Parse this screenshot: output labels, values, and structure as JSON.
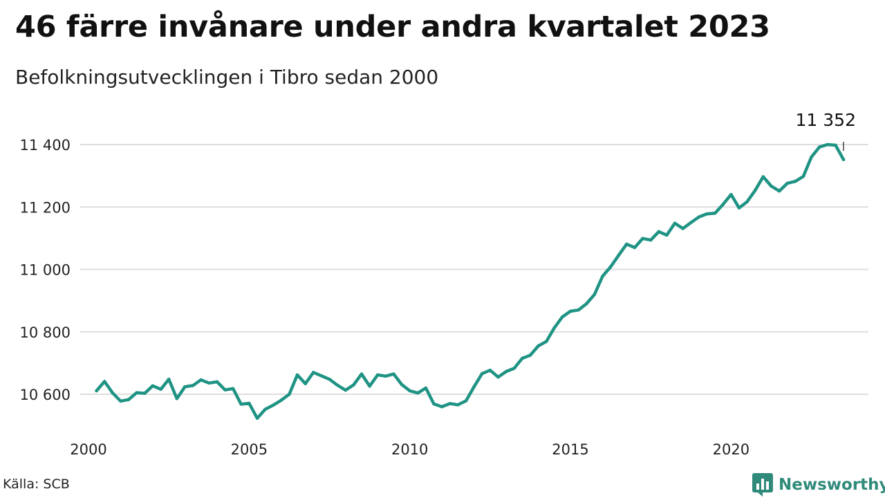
{
  "title": "46 färre invånare under andra kvartalet 2023",
  "subtitle": "Befolkningsutvecklingen i Tibro sedan 2000",
  "source": "Källa: SCB",
  "brand": {
    "name": "Newsworthy",
    "icon": "bar-chart-logo-icon",
    "color": "#2f8a7a"
  },
  "colors": {
    "line": "#1f9384",
    "grid": "#dddddd"
  },
  "chart_data": {
    "type": "line",
    "title": "46 färre invånare under andra kvartalet 2023",
    "subtitle": "Befolkningsutvecklingen i Tibro sedan 2000",
    "xlabel": "",
    "ylabel": "",
    "grid": true,
    "x_ticks": [
      2000,
      2005,
      2010,
      2015,
      2020
    ],
    "x_tick_labels": [
      "2000",
      "2005",
      "2010",
      "2015",
      "2020"
    ],
    "y_ticks": [
      10600,
      10800,
      11000,
      11200,
      11400
    ],
    "y_tick_labels": [
      "10 600",
      "10 800",
      "11 000",
      "11 200",
      "11 400"
    ],
    "xlim": [
      2000,
      2023.5
    ],
    "ylim": [
      10490,
      11420
    ],
    "end_label": "11 352",
    "series": [
      {
        "x": [
          2000.25,
          2000.5,
          2000.75,
          2001.0,
          2001.25,
          2001.5,
          2001.75,
          2002.0,
          2002.25,
          2002.5,
          2002.75,
          2003.0,
          2003.25,
          2003.5,
          2003.75,
          2004.0,
          2004.25,
          2004.5,
          2004.75,
          2005.0,
          2005.25,
          2005.5,
          2005.75,
          2006.0,
          2006.25,
          2006.5,
          2006.75,
          2007.0,
          2007.25,
          2007.5,
          2007.75,
          2008.0,
          2008.25,
          2008.5,
          2008.75,
          2009.0,
          2009.25,
          2009.5,
          2009.75,
          2010.0,
          2010.25,
          2010.5,
          2010.75,
          2011.0,
          2011.25,
          2011.5,
          2011.75,
          2012.0,
          2012.25,
          2012.5,
          2012.75,
          2013.0,
          2013.25,
          2013.5,
          2013.75,
          2014.0,
          2014.25,
          2014.5,
          2014.75,
          2015.0,
          2015.25,
          2015.5,
          2015.75,
          2016.0,
          2016.25,
          2016.5,
          2016.75,
          2017.0,
          2017.25,
          2017.5,
          2017.75,
          2018.0,
          2018.25,
          2018.5,
          2018.75,
          2019.0,
          2019.25,
          2019.5,
          2019.75,
          2020.0,
          2020.25,
          2020.5,
          2020.75,
          2021.0,
          2021.25,
          2021.5,
          2021.75,
          2022.0,
          2022.25,
          2022.5,
          2022.75,
          2023.0,
          2023.25,
          2023.5
        ],
        "values": [
          10611,
          10641,
          10604,
          10578,
          10583,
          10605,
          10603,
          10627,
          10616,
          10648,
          10586,
          10624,
          10628,
          10646,
          10636,
          10640,
          10614,
          10618,
          10568,
          10571,
          10523,
          10552,
          10565,
          10581,
          10600,
          10662,
          10634,
          10670,
          10659,
          10648,
          10629,
          10613,
          10630,
          10665,
          10626,
          10662,
          10658,
          10665,
          10631,
          10611,
          10604,
          10620,
          10569,
          10560,
          10570,
          10566,
          10579,
          10624,
          10666,
          10677,
          10655,
          10673,
          10683,
          10715,
          10725,
          10755,
          10769,
          10813,
          10848,
          10866,
          10870,
          10890,
          10920,
          10978,
          11008,
          11045,
          11081,
          11070,
          11099,
          11094,
          11121,
          11110,
          11148,
          11131,
          11150,
          11168,
          11178,
          11180,
          11208,
          11240,
          11197,
          11217,
          11253,
          11297,
          11267,
          11251,
          11276,
          11282,
          11298,
          11360,
          11392,
          11400,
          11398,
          11352
        ]
      }
    ]
  }
}
